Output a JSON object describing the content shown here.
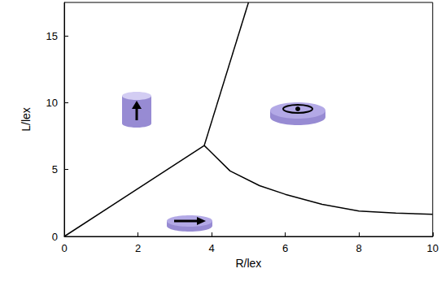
{
  "chart_data": {
    "type": "line",
    "xlabel": "R/lex",
    "ylabel": "L/lex",
    "xlim": [
      0,
      10
    ],
    "ylim": [
      0,
      17.5
    ],
    "xticks": [
      0,
      2,
      4,
      6,
      8,
      10
    ],
    "yticks": [
      0,
      5,
      10,
      15
    ],
    "grid": false,
    "series": [
      {
        "color": "#000000",
        "x": [
          0,
          3.8
        ],
        "values": [
          0,
          6.8
        ]
      },
      {
        "color": "#000000",
        "x": [
          3.8,
          5.0
        ],
        "values": [
          6.8,
          17.5
        ]
      },
      {
        "color": "#000000",
        "x": [
          3.8,
          4.5,
          5.3,
          6.0,
          7.0,
          8.0,
          9.0,
          10.0
        ],
        "values": [
          6.8,
          4.9,
          3.8,
          3.15,
          2.4,
          1.9,
          1.75,
          1.65
        ]
      }
    ]
  }
}
